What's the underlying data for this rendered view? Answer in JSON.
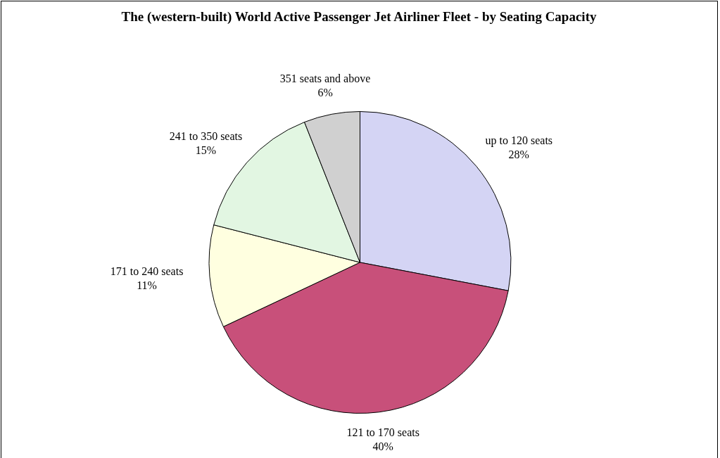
{
  "chart_data": {
    "type": "pie",
    "title": "The (western-built) World Active Passenger Jet Airliner Fleet - by Seating Capacity",
    "categories": [
      "up to 120 seats",
      "121 to 170 seats",
      "171 to 240 seats",
      "241 to 350 seats",
      "351 seats and above"
    ],
    "values": [
      28,
      40,
      11,
      15,
      6
    ],
    "value_labels": [
      "28%",
      "40%",
      "11%",
      "15%",
      "6%"
    ],
    "colors": [
      "#d4d4f4",
      "#c8507a",
      "#ffffe0",
      "#e2f6e2",
      "#d0d0d0"
    ],
    "legend": false
  }
}
